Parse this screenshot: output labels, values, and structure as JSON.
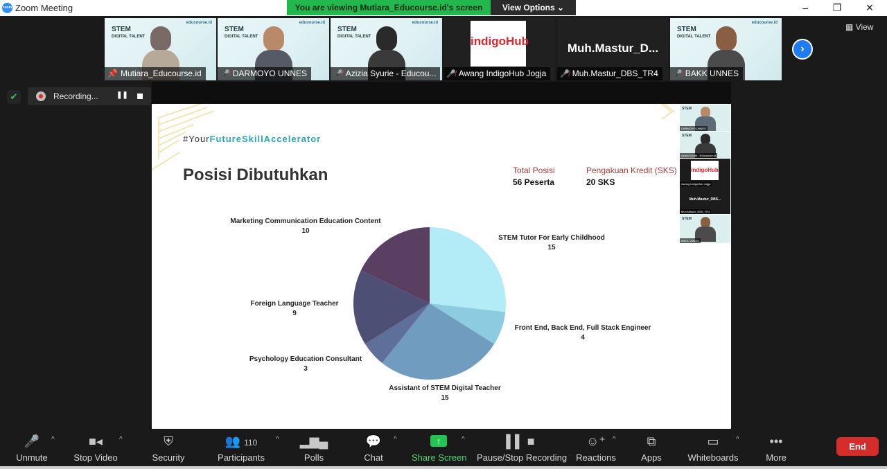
{
  "window": {
    "title": "Zoom Meeting",
    "controls": [
      "–",
      "❐",
      "✕"
    ]
  },
  "banner": {
    "viewing": "You are viewing Mutiara_Educourse.id's screen",
    "view_options": "View Options"
  },
  "gallery": {
    "tiles": [
      {
        "name": "Mutiara_Educourse.id",
        "label_stem": "STEM",
        "label_sub": "DIGITAL TALENT",
        "brand": "educourse.id"
      },
      {
        "name": "DARMOYO UNNES",
        "label_stem": "STEM",
        "label_sub": "DIGITAL TALENT",
        "brand": "educourse.id"
      },
      {
        "name": "Azizia Syurie - Educou...",
        "label_stem": "STEM",
        "label_sub": "DIGITAL TALENT",
        "brand": "educourse.id"
      },
      {
        "name": "Awang IndigoHub Jogja",
        "logo": "indigoHub"
      },
      {
        "name": "Muh.Mastur_DBS_TR4",
        "big": "Muh.Mastur_D..."
      },
      {
        "name": "BAKK UNNES",
        "label_stem": "STEM",
        "label_sub": "DIGITAL TALENT",
        "brand": "educourse.id"
      }
    ],
    "next_icon": "chevron-right-icon",
    "view_label": "View"
  },
  "recording": {
    "text": "Recording...",
    "pause": "❚❚"
  },
  "slide": {
    "hashtag_prefix": "#Your",
    "hashtag_accent": "FutureSkillAccelerator",
    "title": "Posisi Dibutuhkan",
    "stats": [
      {
        "label": "Total Posisi",
        "value": "56 Peserta"
      },
      {
        "label": "Pengakuan Kredit (SKS)",
        "value": "20 SKS"
      }
    ],
    "mini_tiles": [
      "DARMOYO UNNES",
      "Azizia Syurie - Educourse.id",
      "Awang IndigoHub Jogja",
      "Muh.Mastur_DBS...",
      "Muh.Mastur_DBS_TR4",
      "BAKK UNNES"
    ],
    "mini_logo": "indigoHub",
    "mini_name_big": "Muh.Mastur_DBS..."
  },
  "chart_data": {
    "type": "pie",
    "title": "Posisi Dibutuhkan",
    "slices": [
      {
        "label": "STEM Tutor For Early Childhood",
        "value": 15,
        "color": "#b3ecf7"
      },
      {
        "label": "Front End, Back End, Full Stack Engineer",
        "value": 4,
        "color": "#8ccbe0"
      },
      {
        "label": "Assistant of STEM Digital Teacher",
        "value": 15,
        "color": "#6f9cbf"
      },
      {
        "label": "Psychology Education Consultant",
        "value": 3,
        "color": "#5e6f9a"
      },
      {
        "label": "Foreign Language Teacher",
        "value": 9,
        "color": "#4d4f75"
      },
      {
        "label": "Marketing Communication Education Content",
        "value": 10,
        "color": "#5a3f62"
      }
    ]
  },
  "toolbar": {
    "unmute": "Unmute",
    "stop_video": "Stop Video",
    "security": "Security",
    "participants": "Participants",
    "participants_count": "110",
    "polls": "Polls",
    "chat": "Chat",
    "share_screen": "Share Screen",
    "pause_stop": "Pause/Stop Recording",
    "reactions": "Reactions",
    "apps": "Apps",
    "whiteboards": "Whiteboards",
    "more": "More",
    "end": "End"
  },
  "colors": {
    "accent_green": "#22b84d",
    "end_red": "#d52c2c",
    "hashtag_teal": "#2aa6b8",
    "stat_label": "#a33a3a"
  }
}
